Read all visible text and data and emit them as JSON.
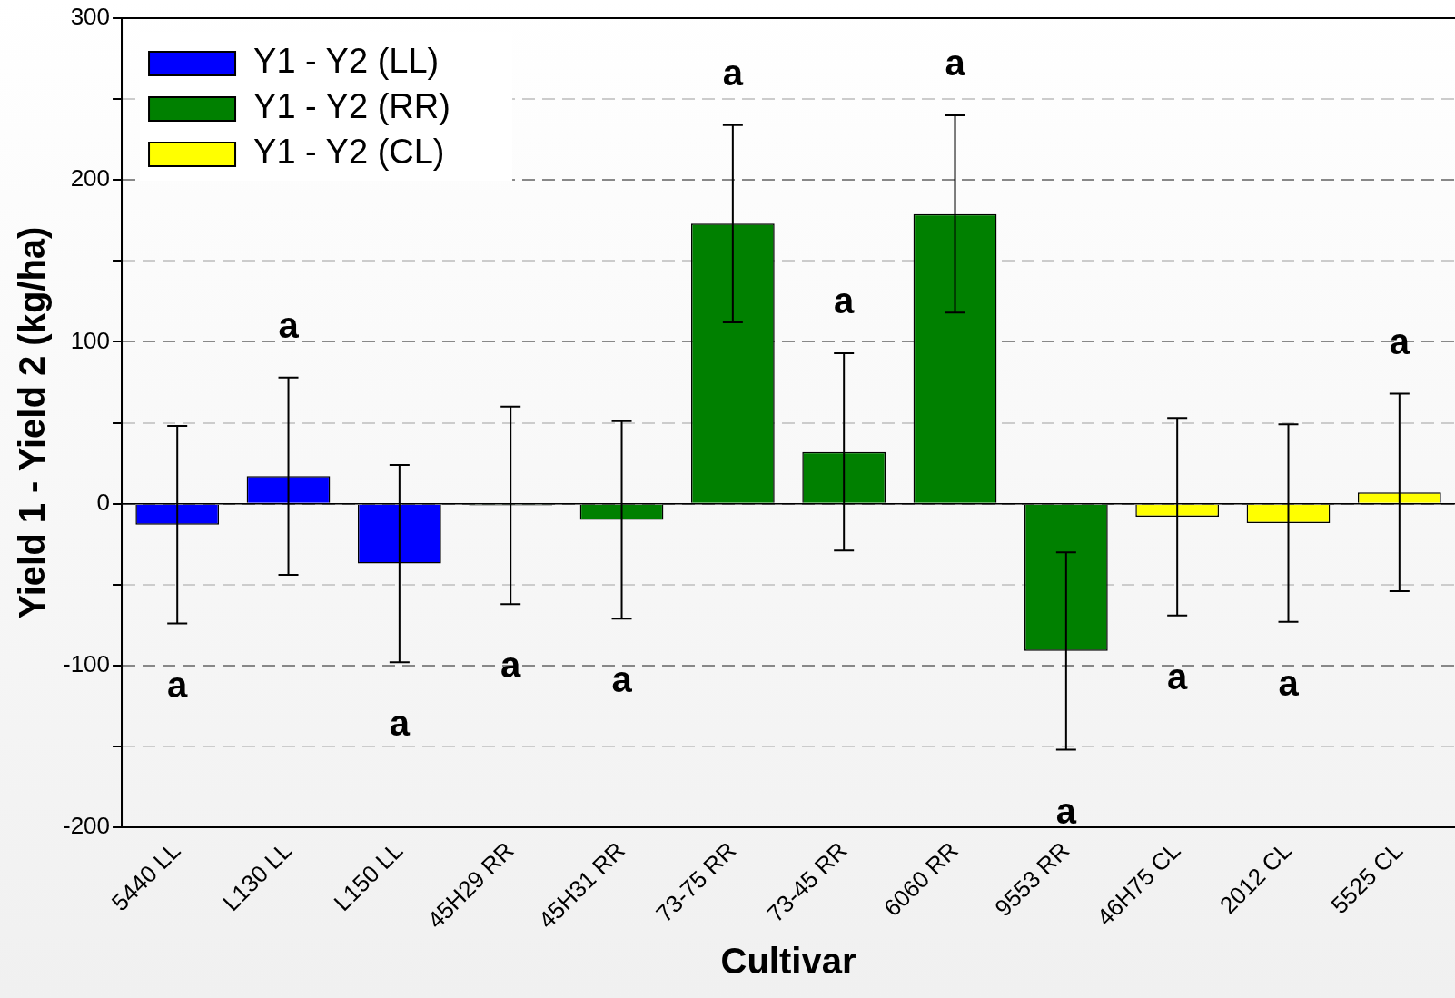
{
  "chart_data": {
    "type": "bar",
    "xlabel": "Cultivar",
    "ylabel": "Yield 1 - Yield 2 (kg/ha)",
    "categories": [
      "5440 LL",
      "L130 LL",
      "L150 LL",
      "45H29 RR",
      "45H31 RR",
      "73-75 RR",
      "73-45 RR",
      "6060 RR",
      "9553 RR",
      "46H75 CL",
      "2012 CL",
      "5525 CL"
    ],
    "series": [
      {
        "name": "Y1 - Y2 (LL)",
        "color": "#0000ff",
        "values": [
          -13,
          17,
          -37,
          null,
          null,
          null,
          null,
          null,
          null,
          null,
          null,
          null
        ],
        "errors": [
          61,
          61,
          61,
          null,
          null,
          null,
          null,
          null,
          null,
          null,
          null,
          null
        ]
      },
      {
        "name": "Y1 - Y2 (RR)",
        "color": "#008000",
        "values": [
          null,
          null,
          null,
          -1,
          -10,
          173,
          32,
          179,
          -91,
          null,
          null,
          null
        ],
        "errors": [
          null,
          null,
          null,
          61,
          61,
          61,
          61,
          61,
          61,
          null,
          null,
          null
        ]
      },
      {
        "name": "Y1 - Y2 (CL)",
        "color": "#ffff00",
        "values": [
          null,
          null,
          null,
          null,
          null,
          null,
          null,
          null,
          null,
          -8,
          -12,
          7
        ],
        "errors": [
          null,
          null,
          null,
          null,
          null,
          null,
          null,
          null,
          null,
          61,
          61,
          61
        ]
      }
    ],
    "ylim": [
      -200,
      300
    ],
    "yticks": [
      -200,
      {
        "value": -150,
        "label": null
      },
      -100,
      {
        "value": -50,
        "label": null
      },
      0,
      {
        "value": 50,
        "label": null
      },
      100,
      {
        "value": 150,
        "label": null
      },
      200,
      {
        "value": 250,
        "label": null
      },
      300
    ],
    "grid": "y",
    "legend": "top left",
    "ref_lines": [
      {
        "axis": "y",
        "value": 0,
        "color": "#000000"
      }
    ],
    "annotations": [
      "a",
      "a",
      "a",
      "a",
      "a",
      "a",
      "a",
      "a",
      "a",
      "a",
      "a",
      "a"
    ]
  }
}
